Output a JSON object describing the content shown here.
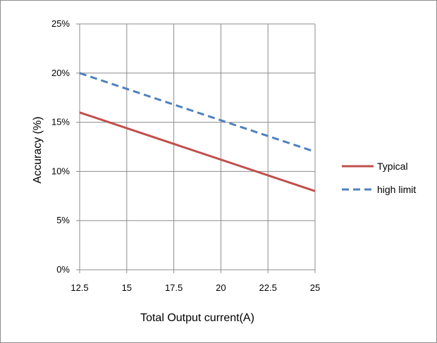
{
  "chart_data": {
    "type": "line",
    "xlabel": "Total Output current(A)",
    "ylabel": "Accuracy (%)",
    "x": [
      12.5,
      25
    ],
    "xlim": [
      12.5,
      25
    ],
    "ylim": [
      0,
      25
    ],
    "x_ticks": [
      12.5,
      15,
      17.5,
      20,
      22.5,
      25
    ],
    "x_tick_labels": [
      "12.5",
      "15",
      "17.5",
      "20",
      "22.5",
      "25"
    ],
    "y_ticks": [
      0,
      5,
      10,
      15,
      20,
      25
    ],
    "y_tick_labels": [
      "0%",
      "5%",
      "10%",
      "15%",
      "20%",
      "25%"
    ],
    "grid": true,
    "legend_position": "right",
    "series": [
      {
        "name": "Typical",
        "x": [
          12.5,
          25
        ],
        "values": [
          16,
          8
        ],
        "color": "#c0504d",
        "style": "solid"
      },
      {
        "name": "high limit",
        "x": [
          12.5,
          25
        ],
        "values": [
          20,
          12
        ],
        "color": "#4f81bd",
        "style": "dashed"
      }
    ]
  }
}
